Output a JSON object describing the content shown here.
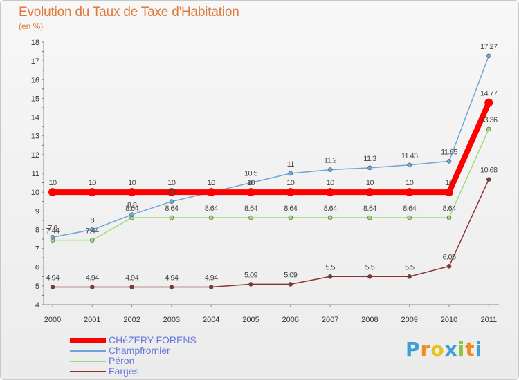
{
  "header": {
    "title": "Evolution du Taux de Taxe d'Habitation",
    "subtitle": "(en %)"
  },
  "brand": {
    "logo_text": "Proxiti"
  },
  "chart_data": {
    "type": "line",
    "x": [
      "2000",
      "2001",
      "2002",
      "2003",
      "2004",
      "2005",
      "2006",
      "2007",
      "2008",
      "2009",
      "2010",
      "2011"
    ],
    "ylim": [
      4,
      18
    ],
    "yticks": [
      4,
      5,
      6,
      7,
      8,
      9,
      10,
      11,
      12,
      13,
      14,
      15,
      16,
      17,
      18
    ],
    "grid": false,
    "legend_position": "bottom-left",
    "series": [
      {
        "name": "CHéZERY-FORENS",
        "color": "#ff0000",
        "values": [
          10,
          10,
          10,
          10,
          10,
          10,
          10,
          10,
          10,
          10,
          10,
          14.77
        ],
        "labels": [
          "10",
          "10",
          "10",
          "10",
          "10",
          "10",
          "10",
          "10",
          "10",
          "10",
          "10",
          "14.77"
        ]
      },
      {
        "name": "Champfromier",
        "color": "#6ea6d8",
        "values": [
          7.6,
          8,
          8.8,
          9.5,
          10,
          10.5,
          11,
          11.2,
          11.3,
          11.45,
          11.65,
          17.27
        ],
        "labels": [
          "7.6",
          "8",
          "8.8",
          "9.5",
          "10",
          "10.5",
          "11",
          "11.2",
          "11.3",
          "11.45",
          "11.65",
          "17.27"
        ]
      },
      {
        "name": "Péron",
        "color": "#99dd77",
        "values": [
          7.44,
          7.44,
          8.64,
          8.64,
          8.64,
          8.64,
          8.64,
          8.64,
          8.64,
          8.64,
          8.64,
          13.36
        ],
        "labels": [
          "7.44",
          "7.44",
          "8.64",
          "8.64",
          "8.64",
          "8.64",
          "8.64",
          "8.64",
          "8.64",
          "8.64",
          "8.64",
          "13.36"
        ]
      },
      {
        "name": "Farges",
        "color": "#883333",
        "values": [
          4.94,
          4.94,
          4.94,
          4.94,
          4.94,
          5.09,
          5.09,
          5.5,
          5.5,
          5.5,
          6.05,
          10.68
        ],
        "labels": [
          "4.94",
          "4.94",
          "4.94",
          "4.94",
          "4.94",
          "5.09",
          "5.09",
          "5.5",
          "5.5",
          "5.5",
          "6.05",
          "10.68"
        ]
      }
    ]
  }
}
